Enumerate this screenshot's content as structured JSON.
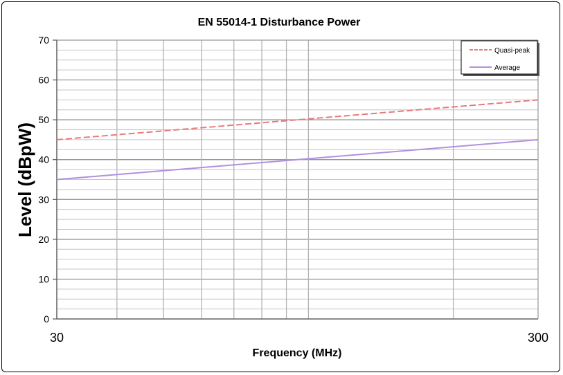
{
  "chart_data": {
    "type": "line",
    "title": "EN 55014-1 Disturbance Power",
    "xlabel": "Frequency (MHz)",
    "ylabel": "Level (dBpW)",
    "x_scale": "log",
    "xlim": [
      30,
      300
    ],
    "ylim": [
      0,
      70
    ],
    "x_ticks": [
      "30",
      "300"
    ],
    "y_ticks": [
      "0",
      "10",
      "20",
      "30",
      "40",
      "50",
      "60",
      "70"
    ],
    "grid": true,
    "legend_position": "top-right",
    "series": [
      {
        "name": "Quasi-peak",
        "color": "#e87a7a",
        "style": "dashed",
        "x": [
          30,
          300
        ],
        "y": [
          45,
          55
        ]
      },
      {
        "name": "Average",
        "color": "#b28fe0",
        "style": "solid",
        "x": [
          30,
          300
        ],
        "y": [
          35,
          45
        ]
      }
    ]
  }
}
